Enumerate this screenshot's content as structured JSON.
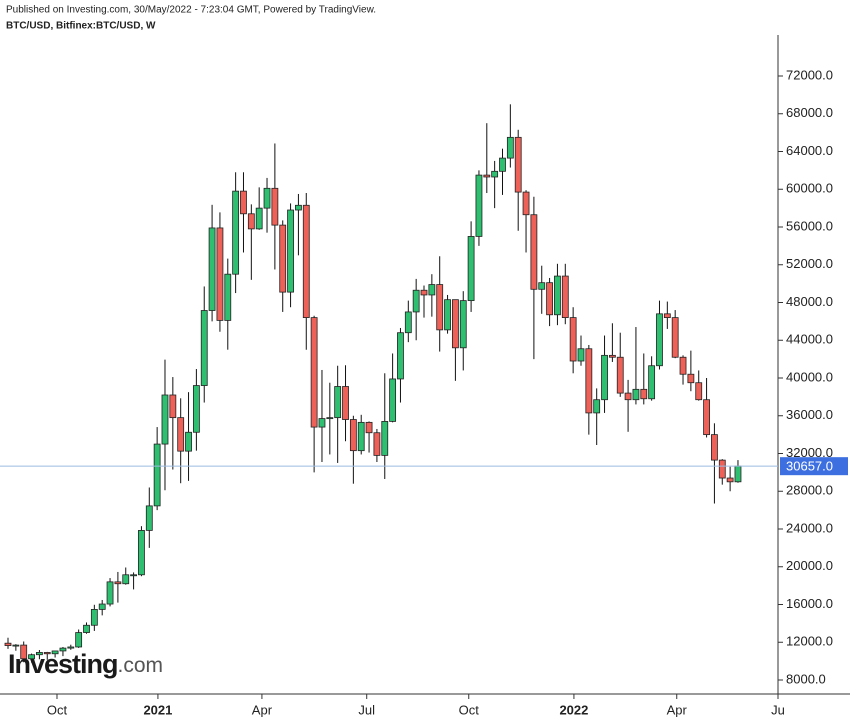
{
  "chart_data": {
    "type": "candlestick",
    "published": "Published on Investing.com, 30/May/2022 - 7:23:04 GMT, Powered by TradingView.",
    "symbol": "BTC/USD, Bitfinex:BTC/USD, W",
    "logo": {
      "name": "Investing",
      "suffix": ".com"
    },
    "up_color": "#2fbf71",
    "down_color": "#ee6158",
    "open": [
      11900,
      11650,
      11700,
      10250,
      10680,
      10920,
      10780,
      11080,
      11380,
      11500,
      13030,
      13800,
      15480,
      16050,
      18400,
      18200,
      19150,
      19150,
      23850,
      26450,
      33000,
      38200,
      35800,
      32250,
      34250,
      39200,
      47150,
      55900,
      46100,
      51000,
      59800,
      57400,
      55800,
      58000,
      60100,
      56200,
      49100,
      57800,
      58300,
      46400,
      34800,
      35700,
      35800,
      39100,
      35600,
      32300,
      35300,
      34200,
      31800,
      35400,
      39900,
      44800,
      47000,
      49300,
      48800,
      49900,
      45100,
      48300,
      43200,
      48200,
      55000,
      61500,
      61300,
      61900,
      63300,
      65500,
      59700,
      57300,
      49400,
      50100,
      46700,
      50800,
      46400,
      41800,
      43100,
      36300,
      37700,
      42400,
      42200,
      38400,
      37700,
      38800,
      37800,
      41300,
      46800,
      46400,
      42200,
      40400,
      39500,
      37700,
      34000,
      31300,
      29400,
      29000
    ],
    "high": [
      12480,
      11800,
      12080,
      10800,
      11180,
      10980,
      11000,
      11500,
      11740,
      13350,
      14100,
      15970,
      16480,
      18800,
      19450,
      19920,
      19400,
      24300,
      28400,
      34800,
      41950,
      40100,
      37850,
      38500,
      40950,
      49700,
      58350,
      57550,
      52650,
      61800,
      61800,
      58400,
      60200,
      61200,
      64850,
      56700,
      58500,
      59500,
      59600,
      46600,
      40850,
      39500,
      41300,
      41350,
      36000,
      36100,
      35400,
      34600,
      40500,
      42600,
      45300,
      48200,
      50500,
      49800,
      51000,
      52900,
      48800,
      48300,
      49200,
      56600,
      62000,
      67000,
      63000,
      64300,
      69000,
      66300,
      59900,
      59200,
      51900,
      50600,
      52100,
      52100,
      47500,
      44500,
      43500,
      38900,
      44500,
      45800,
      44800,
      39800,
      45400,
      42600,
      42300,
      48200,
      48100,
      47200,
      42400,
      42900,
      40800,
      40000,
      35200,
      31400,
      30600,
      31300
    ],
    "low": [
      11300,
      11100,
      9880,
      9850,
      10200,
      10140,
      10380,
      10530,
      11200,
      11400,
      12900,
      13200,
      14850,
      15800,
      16200,
      18100,
      17600,
      19000,
      22000,
      26000,
      28100,
      30300,
      28850,
      29100,
      32300,
      37400,
      46000,
      44900,
      43000,
      49000,
      53300,
      50400,
      55700,
      55400,
      51500,
      47000,
      47500,
      53000,
      43000,
      30000,
      31100,
      31900,
      31000,
      33300,
      28800,
      31900,
      32100,
      31100,
      29300,
      35300,
      37400,
      43800,
      44000,
      46400,
      46500,
      42800,
      44700,
      39700,
      40800,
      47000,
      54000,
      59600,
      58000,
      59400,
      62300,
      55600,
      53300,
      42000,
      46800,
      45500,
      45600,
      45700,
      40500,
      41300,
      34000,
      32900,
      36300,
      41700,
      38000,
      34300,
      37200,
      37200,
      37600,
      40900,
      45200,
      42100,
      39300,
      38600,
      37600,
      33700,
      26700,
      28700,
      28000,
      28900
    ],
    "close": [
      11650,
      11700,
      10250,
      10680,
      10920,
      10780,
      11080,
      11380,
      11500,
      13030,
      13800,
      15480,
      16050,
      18400,
      18200,
      19150,
      19150,
      23850,
      26450,
      33000,
      38200,
      35800,
      32250,
      34250,
      39200,
      47150,
      55900,
      46100,
      51000,
      59800,
      57400,
      55800,
      58000,
      60100,
      56200,
      49100,
      57800,
      58300,
      46400,
      34800,
      35700,
      35800,
      39100,
      35600,
      32300,
      35300,
      34200,
      31800,
      35400,
      39900,
      44800,
      47000,
      49300,
      48800,
      49900,
      45100,
      48300,
      43200,
      48200,
      55000,
      61500,
      61300,
      61900,
      63300,
      65500,
      59700,
      57300,
      49400,
      50100,
      46700,
      50800,
      46400,
      41800,
      43100,
      36300,
      37700,
      42400,
      42200,
      38400,
      37700,
      38800,
      37800,
      41300,
      46800,
      46400,
      42200,
      40400,
      39500,
      37700,
      34000,
      31300,
      29400,
      29000,
      30657
    ],
    "last_price": {
      "value": 30657,
      "label": "30657.0"
    },
    "last_color": "#3d6fe0",
    "xlim": [
      -1.02,
      98.1
    ],
    "xticks": [
      {
        "value": 6.24,
        "label": "Oct"
      },
      {
        "value": 19.1,
        "label": "2021"
      },
      {
        "value": 32.35,
        "label": "Apr"
      },
      {
        "value": 45.7,
        "label": "Jul"
      },
      {
        "value": 58.7,
        "label": "Oct"
      },
      {
        "value": 72.1,
        "label": "2022"
      },
      {
        "value": 85.2,
        "label": "Apr"
      },
      {
        "value": 98.1,
        "label": "Ju"
      }
    ],
    "ylim": [
      6517,
      76344
    ],
    "yticks": [
      {
        "value": 8000,
        "label": "8000.0"
      },
      {
        "value": 12000,
        "label": "12000.0"
      },
      {
        "value": 16000,
        "label": "16000.0"
      },
      {
        "value": 20000,
        "label": "20000.0"
      },
      {
        "value": 24000,
        "label": "24000.0"
      },
      {
        "value": 28000,
        "label": "28000.0"
      },
      {
        "value": 32000,
        "label": "32000.0"
      },
      {
        "value": 36000,
        "label": "36000.0"
      },
      {
        "value": 40000,
        "label": "40000.0"
      },
      {
        "value": 44000,
        "label": "44000.0"
      },
      {
        "value": 48000,
        "label": "48000.0"
      },
      {
        "value": 52000,
        "label": "52000.0"
      },
      {
        "value": 56000,
        "label": "56000.0"
      },
      {
        "value": 60000,
        "label": "60000.0"
      },
      {
        "value": 64000,
        "label": "64000.0"
      },
      {
        "value": 68000,
        "label": "68000.0"
      },
      {
        "value": 72000,
        "label": "72000.0"
      }
    ]
  }
}
